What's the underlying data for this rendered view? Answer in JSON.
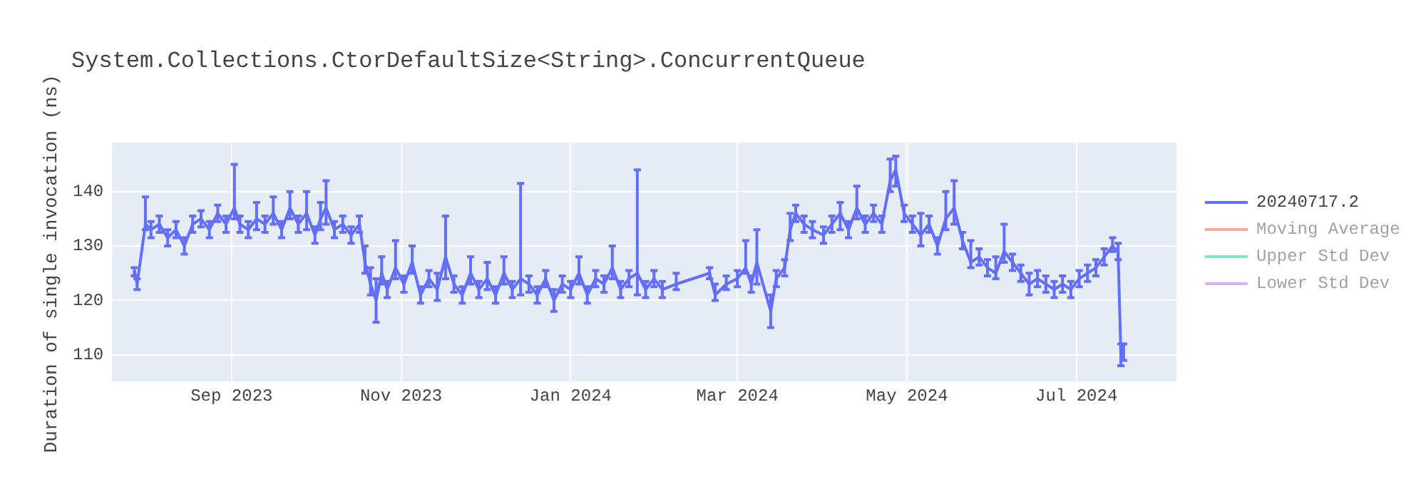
{
  "chart_data": {
    "type": "line",
    "title": "System.Collections.CtorDefaultSize<String>.ConcurrentQueue",
    "ylabel": "Duration of single invocation (ns)",
    "x": [
      "2023-07-28",
      "2023-07-29",
      "2023-08-01",
      "2023-08-03",
      "2023-08-06",
      "2023-08-09",
      "2023-08-12",
      "2023-08-15",
      "2023-08-18",
      "2023-08-21",
      "2023-08-24",
      "2023-08-27",
      "2023-08-30",
      "2023-09-02",
      "2023-09-04",
      "2023-09-07",
      "2023-09-10",
      "2023-09-13",
      "2023-09-16",
      "2023-09-19",
      "2023-09-22",
      "2023-09-25",
      "2023-09-28",
      "2023-10-01",
      "2023-10-03",
      "2023-10-05",
      "2023-10-08",
      "2023-10-11",
      "2023-10-14",
      "2023-10-17",
      "2023-10-19",
      "2023-10-21",
      "2023-10-23",
      "2023-10-25",
      "2023-10-27",
      "2023-10-30",
      "2023-11-02",
      "2023-11-05",
      "2023-11-08",
      "2023-11-11",
      "2023-11-14",
      "2023-11-17",
      "2023-11-20",
      "2023-11-23",
      "2023-11-26",
      "2023-11-29",
      "2023-12-02",
      "2023-12-05",
      "2023-12-08",
      "2023-12-11",
      "2023-12-14",
      "2023-12-17",
      "2023-12-20",
      "2023-12-23",
      "2023-12-26",
      "2023-12-29",
      "2024-01-01",
      "2024-01-04",
      "2024-01-07",
      "2024-01-10",
      "2024-01-13",
      "2024-01-16",
      "2024-01-19",
      "2024-01-22",
      "2024-01-25",
      "2024-01-28",
      "2024-01-31",
      "2024-02-03",
      "2024-02-08",
      "2024-02-20",
      "2024-02-22",
      "2024-02-26",
      "2024-03-01",
      "2024-03-04",
      "2024-03-06",
      "2024-03-08",
      "2024-03-13",
      "2024-03-15",
      "2024-03-18",
      "2024-03-20",
      "2024-03-22",
      "2024-03-25",
      "2024-03-28",
      "2024-04-01",
      "2024-04-04",
      "2024-04-07",
      "2024-04-10",
      "2024-04-13",
      "2024-04-16",
      "2024-04-19",
      "2024-04-22",
      "2024-04-25",
      "2024-04-27",
      "2024-04-30",
      "2024-05-03",
      "2024-05-06",
      "2024-05-09",
      "2024-05-12",
      "2024-05-15",
      "2024-05-18",
      "2024-05-21",
      "2024-05-24",
      "2024-05-27",
      "2024-05-30",
      "2024-06-02",
      "2024-06-05",
      "2024-06-08",
      "2024-06-11",
      "2024-06-14",
      "2024-06-17",
      "2024-06-20",
      "2024-06-23",
      "2024-06-26",
      "2024-06-29",
      "2024-07-02",
      "2024-07-05",
      "2024-07-08",
      "2024-07-11",
      "2024-07-14",
      "2024-07-16",
      "2024-07-17",
      "2024-07-18"
    ],
    "series": [
      {
        "name": "20240717.2",
        "color": "#636efa",
        "values": [
          125.5,
          123,
          134,
          133,
          134,
          131.5,
          133,
          130,
          134,
          135,
          133,
          136,
          134,
          137,
          134,
          133,
          135,
          134,
          136,
          133,
          137,
          134,
          136,
          132,
          135,
          137,
          133,
          134,
          132,
          134,
          127,
          123,
          120,
          125,
          122,
          126,
          123,
          127,
          121,
          124,
          122,
          128,
          123,
          121,
          125,
          122,
          124,
          121,
          125,
          122,
          124,
          123,
          121,
          124,
          120,
          123,
          122,
          125,
          121,
          124,
          123,
          126,
          122,
          124,
          125,
          122,
          124,
          122,
          123,
          125,
          121,
          123,
          124,
          126,
          123,
          127,
          118,
          124,
          126,
          133,
          136,
          134,
          133,
          132,
          134,
          136,
          133,
          137,
          134,
          136,
          134,
          142,
          144,
          136,
          134,
          132,
          134,
          130,
          135,
          137,
          131,
          127,
          128,
          126,
          125,
          129,
          127,
          125,
          123,
          124,
          123,
          122,
          123,
          122,
          124,
          125,
          126,
          128,
          130,
          129,
          110,
          110.5
        ],
        "errors": [
          [
            124.5,
            126
          ],
          [
            122,
            124
          ],
          [
            133,
            139
          ],
          [
            131.5,
            134.5
          ],
          [
            132.5,
            135.5
          ],
          [
            130,
            133
          ],
          [
            131.5,
            134.5
          ],
          [
            128.5,
            131.5
          ],
          [
            132.5,
            135.5
          ],
          [
            133.5,
            136.5
          ],
          [
            131.5,
            134.5
          ],
          [
            134.5,
            137.5
          ],
          [
            132.5,
            135.5
          ],
          [
            135,
            145
          ],
          [
            132.5,
            135.5
          ],
          [
            131.5,
            134.5
          ],
          [
            133,
            138
          ],
          [
            132.5,
            135.5
          ],
          [
            134,
            139
          ],
          [
            131.5,
            134.5
          ],
          [
            135,
            140
          ],
          [
            132.5,
            135.5
          ],
          [
            133,
            140
          ],
          [
            130.5,
            133.5
          ],
          [
            133,
            138
          ],
          [
            134,
            142
          ],
          [
            131.5,
            134.5
          ],
          [
            132.5,
            135.5
          ],
          [
            130.5,
            133.5
          ],
          [
            132.5,
            135.5
          ],
          [
            125,
            130
          ],
          [
            121,
            126
          ],
          [
            116,
            124
          ],
          [
            123,
            128
          ],
          [
            120.5,
            123.5
          ],
          [
            124,
            131
          ],
          [
            121.5,
            124.5
          ],
          [
            125,
            130
          ],
          [
            119.5,
            122.5
          ],
          [
            122.5,
            125.5
          ],
          [
            120,
            125
          ],
          [
            124,
            135.5
          ],
          [
            121.5,
            124.5
          ],
          [
            119.5,
            122.5
          ],
          [
            123,
            128
          ],
          [
            120.5,
            123.5
          ],
          [
            122,
            127
          ],
          [
            119.5,
            122.5
          ],
          [
            123,
            128
          ],
          [
            120.5,
            123.5
          ],
          [
            121,
            141.5
          ],
          [
            121.5,
            124.5
          ],
          [
            119.5,
            122.5
          ],
          [
            122.5,
            125.5
          ],
          [
            118,
            122
          ],
          [
            121.5,
            124.5
          ],
          [
            120.5,
            123.5
          ],
          [
            123,
            128
          ],
          [
            119.5,
            122.5
          ],
          [
            122.5,
            125.5
          ],
          [
            121.5,
            124.5
          ],
          [
            124,
            130
          ],
          [
            120.5,
            123.5
          ],
          [
            122.5,
            125.5
          ],
          [
            121,
            144
          ],
          [
            120.5,
            123.5
          ],
          [
            122.5,
            125.5
          ],
          [
            120.5,
            123.5
          ],
          [
            122,
            125
          ],
          [
            124,
            126
          ],
          [
            120,
            123
          ],
          [
            122,
            124.5
          ],
          [
            122.5,
            125.5
          ],
          [
            125,
            131
          ],
          [
            121.5,
            124.5
          ],
          [
            123,
            133
          ],
          [
            115,
            121
          ],
          [
            122.5,
            125.5
          ],
          [
            124.5,
            127.5
          ],
          [
            131,
            136
          ],
          [
            134.5,
            137.5
          ],
          [
            132.5,
            135.5
          ],
          [
            131.5,
            134.5
          ],
          [
            130.5,
            133.5
          ],
          [
            132.5,
            135.5
          ],
          [
            133,
            138
          ],
          [
            131.5,
            134.5
          ],
          [
            135,
            141
          ],
          [
            132.5,
            135.5
          ],
          [
            134.5,
            137.5
          ],
          [
            132.5,
            135.5
          ],
          [
            140,
            146
          ],
          [
            141,
            146.5
          ],
          [
            134.5,
            137.5
          ],
          [
            132.5,
            135.5
          ],
          [
            130,
            136
          ],
          [
            132.5,
            135.5
          ],
          [
            128.5,
            131.5
          ],
          [
            133,
            140
          ],
          [
            134,
            142
          ],
          [
            129.5,
            132.5
          ],
          [
            126,
            131
          ],
          [
            126.5,
            129.5
          ],
          [
            124.5,
            127.5
          ],
          [
            124,
            128
          ],
          [
            127,
            134
          ],
          [
            125.5,
            128.5
          ],
          [
            123.5,
            126.5
          ],
          [
            121,
            125
          ],
          [
            122.5,
            125.5
          ],
          [
            121.5,
            124.5
          ],
          [
            120.5,
            123.5
          ],
          [
            121.5,
            124.5
          ],
          [
            120.5,
            123.5
          ],
          [
            122.5,
            125.5
          ],
          [
            123.5,
            126.5
          ],
          [
            124.5,
            127.5
          ],
          [
            126.5,
            129.5
          ],
          [
            129,
            131.5
          ],
          [
            127.5,
            130.5
          ],
          [
            108,
            112
          ],
          [
            109,
            112
          ]
        ]
      },
      {
        "name": "Moving Average",
        "color": "#ef553b",
        "values": [
          null,
          null,
          null,
          null,
          null,
          null,
          null,
          null,
          null,
          null,
          null,
          null,
          null,
          null,
          null,
          null,
          null,
          null,
          null,
          null,
          null,
          null,
          null,
          null,
          null,
          null,
          null,
          null,
          null,
          null,
          null,
          null,
          null,
          null,
          null,
          null,
          null,
          null,
          null,
          null,
          null,
          null,
          null,
          null,
          null,
          null,
          null,
          null,
          null,
          null,
          null,
          null,
          null,
          null,
          null,
          null,
          null,
          null,
          null,
          null,
          null,
          null,
          null,
          null,
          null,
          null,
          null,
          null,
          null,
          null,
          null,
          null,
          null,
          null,
          null,
          null,
          null,
          null,
          null,
          null,
          null,
          null,
          null,
          null,
          null,
          null,
          null,
          null,
          null,
          null,
          null,
          null,
          null,
          null,
          null,
          null,
          null,
          null,
          null,
          null,
          null,
          null,
          null,
          null,
          null,
          null,
          null,
          null,
          null,
          null,
          null,
          null,
          null,
          null,
          null,
          null,
          null,
          null,
          null,
          null,
          null,
          null
        ]
      },
      {
        "name": "Upper Std Dev",
        "color": "#00cc96",
        "values": [
          null,
          null,
          null,
          null,
          null,
          null,
          null,
          null,
          null,
          null,
          null,
          null,
          null,
          null,
          null,
          null,
          null,
          null,
          null,
          null,
          null,
          null,
          null,
          null,
          null,
          null,
          null,
          null,
          null,
          null,
          null,
          null,
          null,
          null,
          null,
          null,
          null,
          null,
          null,
          null,
          null,
          null,
          null,
          null,
          null,
          null,
          null,
          null,
          null,
          null,
          null,
          null,
          null,
          null,
          null,
          null,
          null,
          null,
          null,
          null,
          null,
          null,
          null,
          null,
          null,
          null,
          null,
          null,
          null,
          null,
          null,
          null,
          null,
          null,
          null,
          null,
          null,
          null,
          null,
          null,
          null,
          null,
          null,
          null,
          null,
          null,
          null,
          null,
          null,
          null,
          null,
          null,
          null,
          null,
          null,
          null,
          null,
          null,
          null,
          null,
          null,
          null,
          null,
          null,
          null,
          null,
          null,
          null,
          null,
          null,
          null,
          null,
          null,
          null,
          null,
          null,
          null,
          null,
          null,
          null,
          null,
          null
        ]
      },
      {
        "name": "Lower Std Dev",
        "color": "#ab63fa",
        "values": [
          null,
          null,
          null,
          null,
          null,
          null,
          null,
          null,
          null,
          null,
          null,
          null,
          null,
          null,
          null,
          null,
          null,
          null,
          null,
          null,
          null,
          null,
          null,
          null,
          null,
          null,
          null,
          null,
          null,
          null,
          null,
          null,
          null,
          null,
          null,
          null,
          null,
          null,
          null,
          null,
          null,
          null,
          null,
          null,
          null,
          null,
          null,
          null,
          null,
          null,
          null,
          null,
          null,
          null,
          null,
          null,
          null,
          null,
          null,
          null,
          null,
          null,
          null,
          null,
          null,
          null,
          null,
          null,
          null,
          null,
          null,
          null,
          null,
          null,
          null,
          null,
          null,
          null,
          null,
          null,
          null,
          null,
          null,
          null,
          null,
          null,
          null,
          null,
          null,
          null,
          null,
          null,
          null,
          null,
          null,
          null,
          null,
          null,
          null,
          null,
          null,
          null,
          null,
          null,
          null,
          null,
          null,
          null,
          null,
          null,
          null,
          null,
          null,
          null,
          null,
          null,
          null,
          null,
          null,
          null,
          null,
          null
        ]
      }
    ],
    "xlim": [
      "2023-07-20",
      "2024-08-06"
    ],
    "xticks": [
      {
        "value": "2023-09-01",
        "label": "Sep 2023"
      },
      {
        "value": "2023-11-01",
        "label": "Nov 2023"
      },
      {
        "value": "2024-01-01",
        "label": "Jan 2024"
      },
      {
        "value": "2024-03-01",
        "label": "Mar 2024"
      },
      {
        "value": "2024-05-01",
        "label": "May 2024"
      },
      {
        "value": "2024-07-01",
        "label": "Jul 2024"
      }
    ],
    "ylim": [
      105.1,
      149
    ],
    "yticks": [
      110,
      120,
      130,
      140
    ],
    "grid": true,
    "legend": "top right",
    "line_style": "solid"
  }
}
